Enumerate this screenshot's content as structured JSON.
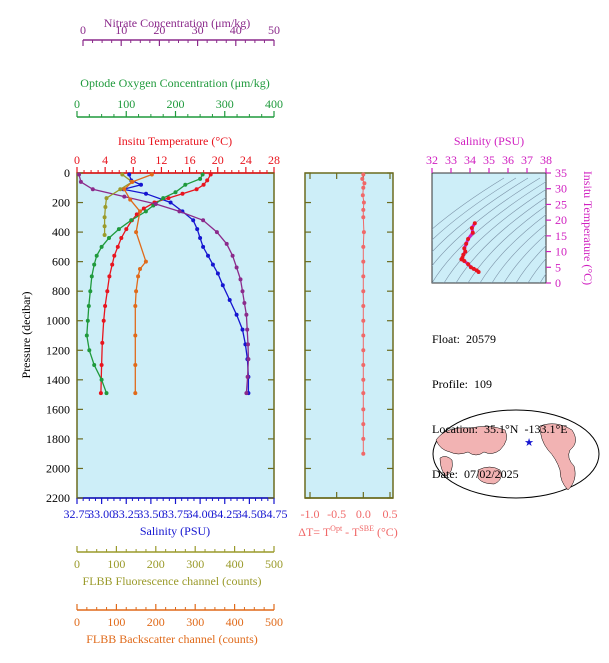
{
  "nitrate_axis": {
    "label": "Nitrate Concentration (μm/kg)",
    "ticks": [
      "0",
      "10",
      "20",
      "30",
      "40",
      "50"
    ],
    "color": "#8b2a8b"
  },
  "oxygen_axis": {
    "label": "Optode Oxygen Concentration (μm/kg)",
    "ticks": [
      "0",
      "100",
      "200",
      "300",
      "400"
    ],
    "color": "#1f9a3c"
  },
  "temp_axis": {
    "label": "Insitu Temperature (°C)",
    "ticks": [
      "0",
      "4",
      "8",
      "12",
      "16",
      "20",
      "24",
      "28"
    ],
    "color": "#e8141e"
  },
  "salinity_axis": {
    "label": "Salinity (PSU)",
    "ticks": [
      "32.75",
      "33.00",
      "33.25",
      "33.50",
      "33.75",
      "34.00",
      "34.25",
      "34.50",
      "34.75"
    ],
    "color": "#1515d0"
  },
  "pressure_axis": {
    "label": "Pressure (decibar)",
    "ticks": [
      "0",
      "200",
      "400",
      "600",
      "800",
      "1000",
      "1200",
      "1400",
      "1600",
      "1800",
      "2000",
      "2200"
    ]
  },
  "fluor_axis": {
    "label": "FLBB Fluorescence channel (counts)",
    "ticks": [
      "0",
      "100",
      "200",
      "300",
      "400",
      "500"
    ],
    "color": "#9a9a2a"
  },
  "backscatter_axis": {
    "label": "FLBB Backscatter channel (counts)",
    "ticks": [
      "0",
      "100",
      "200",
      "300",
      "400",
      "500"
    ],
    "color": "#e06a1a"
  },
  "dt_axis": {
    "label_prefix": "ΔT= T",
    "sup1": "Opt",
    "label_mid": " - T",
    "sup2": "SBE",
    "label_suffix": " (°C)",
    "ticks": [
      "-1.0",
      "-0.5",
      "0.0",
      "0.5"
    ],
    "color": "#f06868"
  },
  "ts_axis": {
    "top_label": "Salinity (PSU)",
    "top_ticks": [
      "32",
      "33",
      "34",
      "35",
      "36",
      "37",
      "38"
    ],
    "right_label": "Insitu Temperature (°C)",
    "right_ticks": [
      "0",
      "5",
      "10",
      "15",
      "20",
      "25",
      "30",
      "35"
    ],
    "color": "#d020c0"
  },
  "info": {
    "float": "Float:  20579",
    "profile": "Profile:  109",
    "location": "Location:  35.1°N  -133.1°E",
    "date": "Date:  07/02/2025"
  },
  "colors": {
    "panel_bg": "#cdeef8",
    "frame": "#6b6b1f"
  },
  "chart_data": [
    {
      "type": "line",
      "name_hint": "profiles",
      "ylim": [
        0,
        2200
      ],
      "series": [
        {
          "name": "Insitu Temperature",
          "color": "#e8141e",
          "xlim": [
            0,
            28
          ],
          "x": [
            19.0,
            18.5,
            18.0,
            17.0,
            15.0,
            13.0,
            11.0,
            9.5,
            8.5,
            7.8,
            7.0,
            6.3,
            5.8,
            5.3,
            5.0,
            4.6,
            4.3,
            4.0,
            3.8,
            3.6,
            3.5,
            3.4
          ],
          "y": [
            10,
            50,
            80,
            110,
            140,
            170,
            200,
            240,
            280,
            320,
            380,
            440,
            500,
            560,
            620,
            700,
            800,
            900,
            1000,
            1150,
            1300,
            1490
          ]
        },
        {
          "name": "Salinity",
          "color": "#1515d0",
          "xlim": [
            32.75,
            34.75
          ],
          "x": [
            33.28,
            33.3,
            33.4,
            33.22,
            33.45,
            33.7,
            33.82,
            33.93,
            33.97,
            34.0,
            34.03,
            34.08,
            34.13,
            34.18,
            34.23,
            34.3,
            34.37,
            34.43,
            34.46,
            34.48,
            34.49,
            34.49
          ],
          "y": [
            10,
            50,
            80,
            110,
            140,
            200,
            260,
            320,
            380,
            440,
            500,
            560,
            620,
            680,
            760,
            860,
            960,
            1060,
            1160,
            1260,
            1380,
            1490
          ]
        },
        {
          "name": "Optode Oxygen",
          "color": "#1f9a3c",
          "xlim": [
            0,
            400
          ],
          "x": [
            255,
            250,
            220,
            200,
            175,
            155,
            140,
            110,
            85,
            65,
            50,
            40,
            35,
            30,
            27,
            24,
            22,
            20,
            25,
            35,
            50,
            60
          ],
          "y": [
            10,
            40,
            80,
            130,
            170,
            220,
            260,
            320,
            380,
            440,
            500,
            560,
            620,
            700,
            800,
            900,
            1000,
            1100,
            1200,
            1300,
            1400,
            1490
          ]
        },
        {
          "name": "Nitrate",
          "color": "#8b2a8b",
          "xlim": [
            0,
            50
          ],
          "x": [
            0.5,
            1.0,
            4.0,
            12.0,
            20.0,
            26.0,
            32.0,
            35.5,
            38.0,
            39.5,
            40.5,
            41.5,
            42.0,
            42.5,
            43.0,
            43.2,
            43.4,
            43.5,
            43.3,
            43.0
          ],
          "y": [
            10,
            60,
            110,
            160,
            210,
            260,
            320,
            400,
            480,
            560,
            640,
            720,
            800,
            880,
            960,
            1060,
            1160,
            1260,
            1380,
            1490
          ]
        },
        {
          "name": "FLBB Fluorescence",
          "color": "#9a9a2a",
          "xlim": [
            0,
            500
          ],
          "x": [
            115,
            140,
            110,
            75,
            72,
            70,
            70,
            70
          ],
          "y": [
            10,
            60,
            110,
            170,
            230,
            300,
            360,
            420
          ]
        },
        {
          "name": "FLBB Backscatter",
          "color": "#e06a1a",
          "xlim": [
            0,
            500
          ],
          "x": [
            190,
            140,
            120,
            135,
            160,
            150,
            175,
            160,
            155,
            150,
            148,
            148,
            148,
            148
          ],
          "y": [
            10,
            60,
            110,
            180,
            260,
            400,
            600,
            650,
            700,
            800,
            900,
            1100,
            1300,
            1490
          ]
        }
      ]
    },
    {
      "type": "scatter",
      "name_hint": "temperature difference",
      "xlim": [
        -1.0,
        0.5
      ],
      "ylim": [
        0,
        2200
      ],
      "series": [
        {
          "color": "#f06868",
          "x": [
            0.0,
            -0.02,
            0.02,
            0.0,
            -0.01,
            0.01,
            0.0,
            0.0,
            0.01,
            0.0,
            0.0,
            0.0,
            0.0,
            0.0,
            0.0,
            0.0,
            0.0,
            0.0,
            0.0,
            0.0,
            0.0,
            0.0,
            0.0,
            0.0
          ],
          "y": [
            10,
            40,
            70,
            100,
            150,
            200,
            250,
            300,
            400,
            500,
            600,
            700,
            800,
            900,
            1000,
            1100,
            1200,
            1300,
            1400,
            1490,
            1600,
            1700,
            1800,
            1900
          ]
        }
      ]
    },
    {
      "type": "line",
      "name_hint": "T-S diagram",
      "xlim": [
        32,
        38
      ],
      "ylim": [
        0,
        35
      ],
      "series": [
        {
          "color": "#d020c0",
          "x": [
            34.25,
            34.1,
            34.15,
            33.9,
            33.8,
            33.7,
            33.75,
            33.65,
            33.6,
            33.55,
            33.7,
            33.9,
            34.05,
            34.2,
            34.35,
            34.45
          ],
          "y": [
            19,
            17.5,
            16,
            14,
            12.5,
            11,
            10,
            9,
            8,
            7.5,
            7,
            6,
            5,
            4.5,
            4,
            3.5
          ]
        }
      ]
    }
  ]
}
